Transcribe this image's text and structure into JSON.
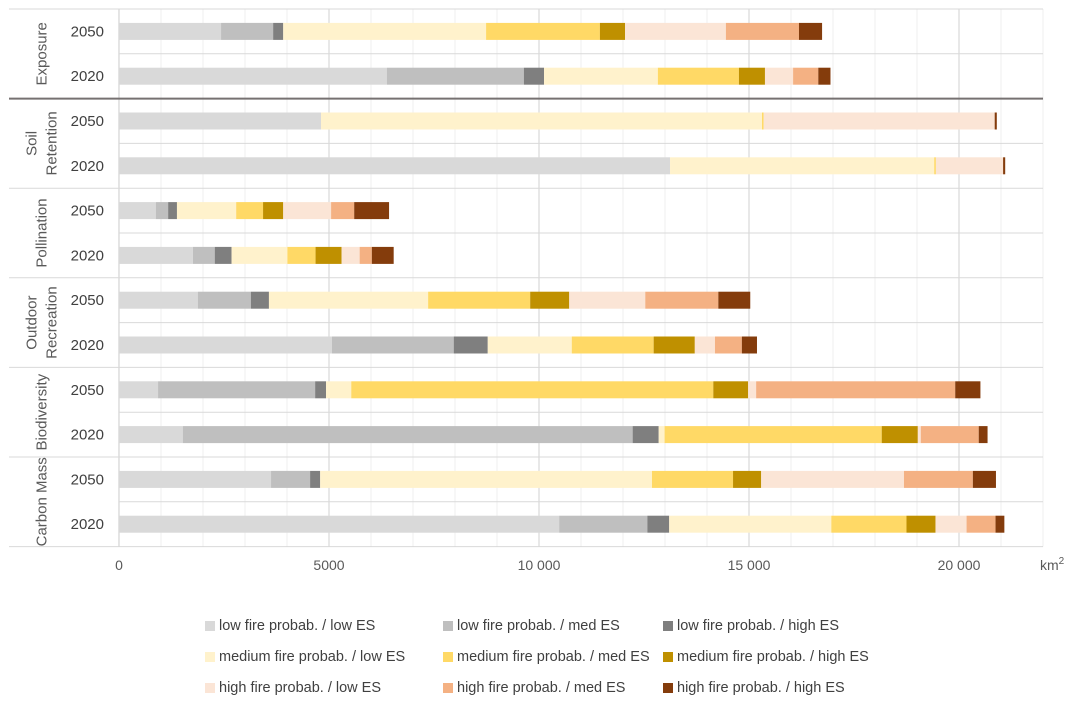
{
  "chart_data": {
    "type": "bar",
    "orientation": "horizontal",
    "stacked": true,
    "title": "",
    "xlabel": "km²",
    "ylabel": "",
    "xlim": [
      0,
      22000
    ],
    "x_ticks": [
      0,
      5000,
      10000,
      15000,
      20000
    ],
    "x_tick_labels": [
      "0",
      "5000",
      "10 000",
      "15 000",
      "20 000"
    ],
    "x_unit_label": "km",
    "x_unit_sup": "2",
    "grid": true,
    "legend_position": "bottom",
    "groups": [
      {
        "name": "Exposure",
        "label_lines": [
          "Exposure"
        ]
      },
      {
        "name": "Soil Retention",
        "label_lines": [
          "Soil",
          "Retention"
        ]
      },
      {
        "name": "Pollination",
        "label_lines": [
          "Pollination"
        ]
      },
      {
        "name": "Outdoor Recreation",
        "label_lines": [
          "Outdoor",
          "Recreation"
        ]
      },
      {
        "name": "Biodiversity",
        "label_lines": [
          "Biodiversity"
        ]
      },
      {
        "name": "Carbon Mass",
        "label_lines": [
          "Carbon Mass"
        ]
      }
    ],
    "categories": [
      {
        "group": "Exposure",
        "year": "2050"
      },
      {
        "group": "Exposure",
        "year": "2020"
      },
      {
        "group": "Soil Retention",
        "year": "2050"
      },
      {
        "group": "Soil Retention",
        "year": "2020"
      },
      {
        "group": "Pollination",
        "year": "2050"
      },
      {
        "group": "Pollination",
        "year": "2020"
      },
      {
        "group": "Outdoor Recreation",
        "year": "2050"
      },
      {
        "group": "Outdoor Recreation",
        "year": "2020"
      },
      {
        "group": "Biodiversity",
        "year": "2050"
      },
      {
        "group": "Biodiversity",
        "year": "2020"
      },
      {
        "group": "Carbon Mass",
        "year": "2050"
      },
      {
        "group": "Carbon Mass",
        "year": "2020"
      }
    ],
    "series": [
      {
        "name": "low fire probab. / low ES",
        "color": "#d9d9d9",
        "values": [
          2430,
          6380,
          4810,
          13120,
          880,
          1760,
          1880,
          5070,
          930,
          1520,
          3620,
          10480
        ]
      },
      {
        "name": "low fire probab. / med ES",
        "color": "#bfbfbf",
        "values": [
          1240,
          3260,
          0,
          0,
          290,
          520,
          1260,
          2900,
          3740,
          10710,
          930,
          2100
        ]
      },
      {
        "name": "low fire probab. / high ES",
        "color": "#7f7f7f",
        "values": [
          240,
          480,
          0,
          0,
          210,
          400,
          430,
          810,
          260,
          620,
          240,
          520
        ]
      },
      {
        "name": "medium fire probab. / low ES",
        "color": "#fff2cc",
        "values": [
          4830,
          2710,
          10500,
          6290,
          1410,
          1330,
          3790,
          2000,
          600,
          140,
          7900,
          3860
        ]
      },
      {
        "name": "medium fire probab. / med ES",
        "color": "#ffd966",
        "values": [
          2710,
          1930,
          40,
          40,
          640,
          670,
          2430,
          1950,
          8620,
          5170,
          1930,
          1790
        ]
      },
      {
        "name": "medium fire probab. / high ES",
        "color": "#bf9000",
        "values": [
          600,
          620,
          0,
          0,
          480,
          620,
          930,
          980,
          830,
          860,
          670,
          690
        ]
      },
      {
        "name": "high fire probab. / low ES",
        "color": "#fbe5d6",
        "values": [
          2400,
          670,
          5500,
          1600,
          1140,
          430,
          1810,
          480,
          190,
          70,
          3400,
          740
        ]
      },
      {
        "name": "high fire probab. / med ES",
        "color": "#f4b183",
        "values": [
          1740,
          600,
          0,
          0,
          550,
          290,
          1740,
          640,
          4740,
          1380,
          1640,
          690
        ]
      },
      {
        "name": "high fire probab. / high ES",
        "color": "#843c0c",
        "values": [
          550,
          290,
          50,
          50,
          830,
          520,
          760,
          360,
          600,
          210,
          550,
          210
        ]
      }
    ]
  }
}
